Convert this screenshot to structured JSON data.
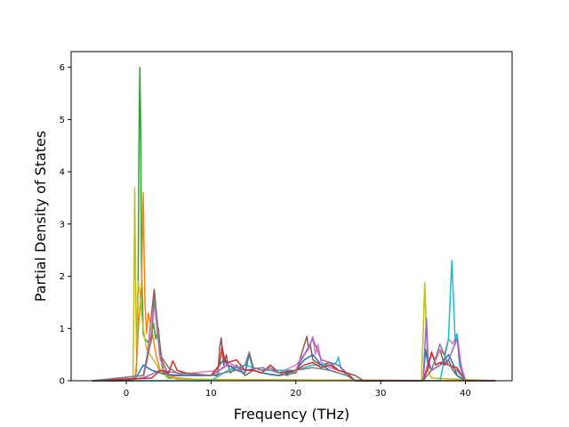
{
  "chart_data": {
    "type": "line",
    "title": "",
    "xlabel": "Frequency (THz)",
    "ylabel": "Partial Density of States",
    "xlim": [
      -6.5,
      45.5
    ],
    "ylim": [
      0,
      6.3
    ],
    "xticks": [
      0,
      10,
      20,
      30,
      40
    ],
    "yticks": [
      0,
      1,
      2,
      3,
      4,
      5,
      6
    ],
    "grid": false,
    "legend": "none",
    "series": [
      {
        "color": "#2ca02c",
        "x": [
          -4,
          0.8,
          1.0,
          1.2,
          1.4,
          1.5,
          1.6,
          1.7,
          1.8,
          2.0,
          2.2,
          2.5,
          2.8,
          3.0,
          3.2,
          3.5,
          3.8,
          4.0,
          4.2,
          4.5,
          5.0,
          6,
          8,
          10,
          43.5
        ],
        "y": [
          0,
          0,
          0.05,
          0.2,
          1.8,
          4.5,
          6.0,
          4.8,
          2.2,
          0.9,
          0.8,
          0.75,
          0.7,
          0.9,
          1.1,
          0.8,
          1.0,
          0.6,
          0.3,
          0.12,
          0.05,
          0.05,
          0.03,
          0.02,
          0
        ]
      },
      {
        "color": "#ff7f0e",
        "x": [
          -4,
          1.0,
          1.2,
          1.5,
          1.8,
          2.0,
          2.1,
          2.2,
          2.4,
          2.6,
          3.0,
          3.5,
          4.0,
          5,
          6,
          8,
          10,
          43.5
        ],
        "y": [
          0,
          0,
          0.3,
          1.2,
          1.8,
          3.6,
          2.5,
          1.5,
          0.9,
          1.3,
          1.0,
          0.5,
          0.2,
          0.1,
          0.05,
          0.03,
          0.02,
          0
        ]
      },
      {
        "color": "#bcbd22",
        "x": [
          -4,
          0.8,
          0.9,
          1.0,
          1.1,
          1.2,
          1.4,
          1.6,
          1.8,
          2.0,
          2.4,
          2.8,
          3.2,
          3.6,
          4.0,
          5,
          6,
          34.8,
          35.0,
          35.2,
          35.4,
          35.6,
          36,
          43.5
        ],
        "y": [
          0,
          0,
          1.5,
          3.7,
          2.0,
          0.6,
          1.9,
          1.7,
          1.3,
          1.0,
          0.6,
          0.5,
          0.4,
          0.3,
          0.15,
          0.08,
          0.03,
          0,
          0.8,
          1.88,
          0.9,
          0.2,
          0.05,
          0
        ]
      },
      {
        "color": "#8c564b",
        "x": [
          -4,
          2,
          2.5,
          3.0,
          3.3,
          3.5,
          3.8,
          4.2,
          5,
          10.8,
          11.0,
          11.2,
          11.5,
          11.8,
          12.0,
          12.3,
          12.6,
          13,
          14,
          15,
          16,
          17,
          18,
          20,
          21.3,
          21.5,
          21.7,
          22,
          23,
          24,
          25,
          26,
          27,
          28,
          35,
          36,
          36.5,
          37,
          37.5,
          38,
          38.5,
          39,
          40,
          43.5
        ],
        "y": [
          0,
          0.1,
          0.5,
          1.3,
          1.75,
          1.4,
          0.9,
          0.4,
          0.1,
          0.1,
          0.6,
          0.82,
          0.3,
          0.5,
          0.3,
          0.15,
          0.2,
          0.3,
          0.1,
          0.2,
          0.15,
          0.12,
          0.1,
          0.15,
          0.85,
          0.6,
          0.7,
          0.4,
          0.3,
          0.35,
          0.2,
          0.15,
          0.1,
          0,
          0,
          0.5,
          0.4,
          0.6,
          0.3,
          0.4,
          0.2,
          0.1,
          0,
          0
        ]
      },
      {
        "color": "#e377c2",
        "x": [
          -4,
          2,
          2.5,
          3.0,
          3.3,
          3.6,
          4.0,
          5,
          11,
          12,
          14,
          16,
          18,
          20,
          20.5,
          21,
          21.5,
          22,
          22.3,
          22.6,
          23,
          23.5,
          24,
          25,
          26,
          27,
          35,
          35.5,
          36,
          36.5,
          37,
          37.5,
          38,
          38.5,
          39,
          39.5,
          40,
          43.5
        ],
        "y": [
          0,
          0.05,
          0.4,
          1.2,
          1.5,
          1.0,
          0.4,
          0.1,
          0.2,
          0.35,
          0.2,
          0.25,
          0.15,
          0.3,
          0.4,
          0.5,
          0.6,
          0.85,
          0.5,
          0.7,
          0.35,
          0.3,
          0.25,
          0.2,
          0.15,
          0,
          0,
          0.3,
          0.5,
          0.4,
          0.6,
          0.5,
          0.8,
          0.7,
          0.9,
          0.3,
          0,
          0
        ]
      },
      {
        "color": "#17becf",
        "x": [
          -4,
          10,
          12,
          14,
          16,
          20,
          22,
          24,
          24.8,
          25,
          25.3,
          26,
          27,
          37,
          38.0,
          38.2,
          38.4,
          38.6,
          38.8,
          39.0,
          39.3,
          40,
          43.5
        ],
        "y": [
          0,
          0,
          0.2,
          0.3,
          0.2,
          0.2,
          0.3,
          0.3,
          0.35,
          0.45,
          0.25,
          0.1,
          0,
          0,
          0.8,
          1.6,
          2.3,
          1.5,
          0.7,
          0.9,
          0.3,
          0,
          0
        ]
      },
      {
        "color": "#1f77b4",
        "x": [
          -4,
          0,
          1.0,
          1.5,
          2.0,
          2.5,
          3,
          4,
          5,
          6,
          8,
          10,
          11,
          11.5,
          12,
          13,
          14,
          14.5,
          15,
          16,
          18,
          20,
          21,
          22,
          23,
          24,
          26,
          27,
          35,
          35.3,
          35.6,
          36,
          37,
          38,
          38.3,
          38.6,
          39,
          40,
          43.5
        ],
        "y": [
          0,
          0,
          0.05,
          0.15,
          0.3,
          0.25,
          0.2,
          0.15,
          0.12,
          0.1,
          0.1,
          0.1,
          0.3,
          0.4,
          0.3,
          0.2,
          0.15,
          0.5,
          0.2,
          0.15,
          0.1,
          0.2,
          0.4,
          0.5,
          0.3,
          0.2,
          0.1,
          0,
          0,
          0.6,
          0.3,
          0.2,
          0.3,
          0.5,
          0.4,
          0.3,
          0.1,
          0,
          0
        ]
      },
      {
        "color": "#9467bd",
        "x": [
          -4,
          2,
          4,
          6,
          10,
          12,
          14,
          16,
          18,
          20,
          21,
          22,
          23,
          24,
          25,
          26,
          27,
          35,
          35.2,
          35.4,
          35.6,
          36,
          37,
          38,
          39,
          39.5,
          40,
          43.5
        ],
        "y": [
          0,
          0.05,
          0.2,
          0.15,
          0.1,
          0.3,
          0.2,
          0.25,
          0.15,
          0.2,
          0.5,
          0.8,
          0.4,
          0.35,
          0.3,
          0.15,
          0,
          0,
          0.6,
          1.2,
          0.4,
          0.2,
          0.3,
          0.4,
          0.8,
          0.2,
          0,
          0
        ]
      },
      {
        "color": "#d62728",
        "x": [
          -4,
          3,
          4,
          5,
          5.5,
          6,
          7,
          10,
          11,
          11.3,
          11.6,
          12,
          13,
          14,
          15,
          16,
          17,
          18,
          20,
          21,
          22,
          23,
          24,
          25,
          26,
          27,
          35,
          35.5,
          36,
          36.5,
          37,
          38,
          39,
          40,
          43.5
        ],
        "y": [
          0,
          0.05,
          0.2,
          0.15,
          0.38,
          0.2,
          0.15,
          0.1,
          0.3,
          0.65,
          0.4,
          0.35,
          0.4,
          0.2,
          0.2,
          0.15,
          0.3,
          0.15,
          0.2,
          0.3,
          0.35,
          0.25,
          0.3,
          0.2,
          0.15,
          0,
          0,
          0.2,
          0.55,
          0.3,
          0.35,
          0.3,
          0.25,
          0,
          0
        ]
      },
      {
        "color": "#7f7f7f",
        "x": [
          -4,
          2,
          3,
          3.3,
          3.6,
          4,
          5,
          6,
          10,
          13,
          14,
          14.5,
          15,
          16,
          17,
          18,
          19,
          20,
          22,
          24,
          26,
          27,
          35,
          36,
          37,
          37.5,
          38,
          39,
          40,
          43.5
        ],
        "y": [
          0,
          0.1,
          0.8,
          1.6,
          1.2,
          0.5,
          0.25,
          0.15,
          0.1,
          0.2,
          0.3,
          0.55,
          0.25,
          0.2,
          0.25,
          0.15,
          0.1,
          0.2,
          0.25,
          0.2,
          0.1,
          0,
          0,
          0.2,
          0.7,
          0.5,
          0.3,
          0.2,
          0,
          0
        ]
      }
    ]
  }
}
